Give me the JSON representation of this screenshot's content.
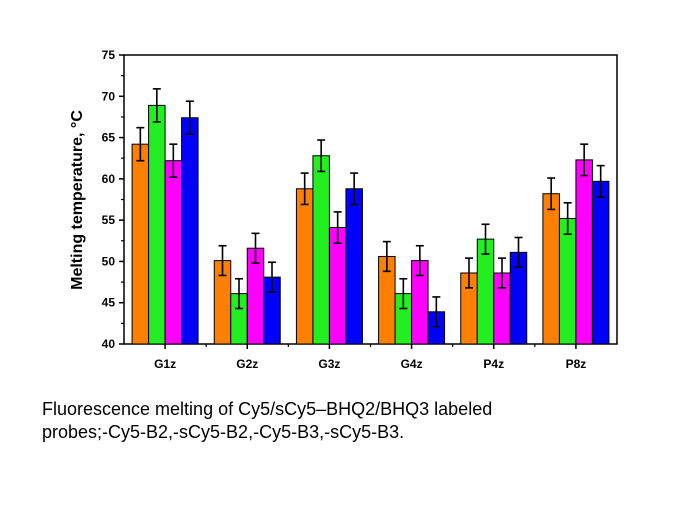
{
  "chart_data": {
    "type": "bar",
    "title": "",
    "xlabel": "",
    "ylabel": "Melting temperature, °C",
    "ylim": [
      40,
      75
    ],
    "yticks": [
      40,
      45,
      50,
      55,
      60,
      65,
      70,
      75
    ],
    "categories": [
      "G1z",
      "G2z",
      "G3z",
      "G4z",
      "P4z",
      "P8z"
    ],
    "series": [
      {
        "color": "#ff7f00",
        "values": [
          64.2,
          50.1,
          58.8,
          50.6,
          48.6,
          58.2
        ],
        "errors": [
          2.0,
          1.8,
          1.9,
          1.8,
          1.8,
          1.9
        ]
      },
      {
        "color": "#22ee22",
        "values": [
          68.9,
          46.1,
          62.8,
          46.1,
          52.7,
          55.2
        ],
        "errors": [
          2.0,
          1.8,
          1.9,
          1.8,
          1.8,
          1.9
        ]
      },
      {
        "color": "#ff00ff",
        "values": [
          62.2,
          51.6,
          54.1,
          50.1,
          48.6,
          62.3
        ],
        "errors": [
          2.0,
          1.8,
          1.9,
          1.8,
          1.8,
          1.9
        ]
      },
      {
        "color": "#0000ff",
        "values": [
          67.4,
          48.1,
          58.8,
          43.9,
          51.1,
          59.7
        ],
        "errors": [
          2.0,
          1.8,
          1.9,
          1.8,
          1.8,
          1.9
        ]
      }
    ],
    "grid": false,
    "legend": "none"
  },
  "caption": {
    "line1": "Fluorescence melting of Cy5/sCy5–BHQ2/BHQ3 labeled",
    "line2": "probes;-Cy5-B2,-sCy5-B2,-Cy5-B3,-sCy5-B3."
  }
}
